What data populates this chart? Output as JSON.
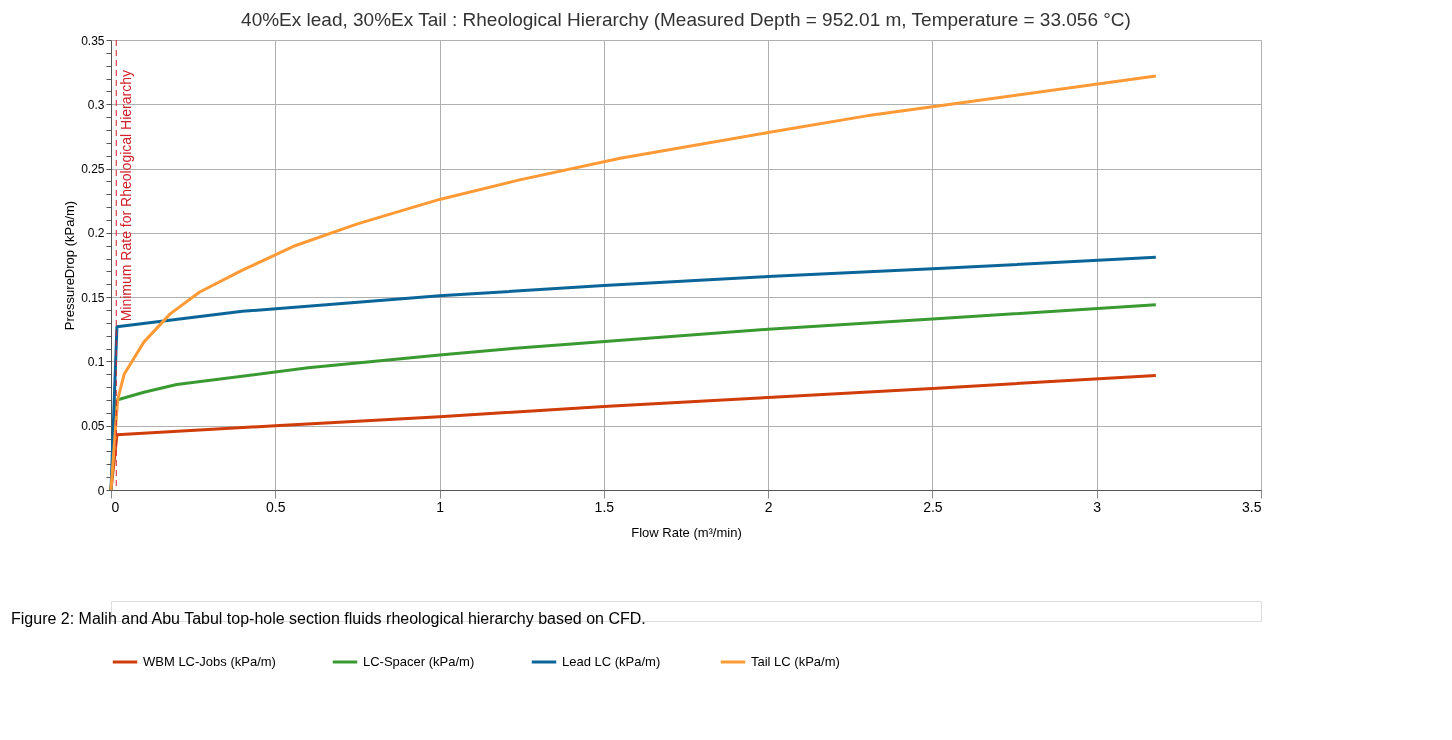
{
  "chart_data": {
    "type": "line",
    "title": "40%Ex lead, 30%Ex Tail : Rheological Hierarchy (Measured Depth = 952.01 m, Temperature = 33.056 °C)",
    "xlabel": "Flow Rate (m³/min)",
    "ylabel": "PressureDrop (kPa/m)",
    "xlim": [
      0,
      3.5
    ],
    "xticks": [
      0,
      0.5,
      1,
      1.5,
      2,
      2.5,
      3,
      3.5
    ],
    "ylim": [
      0,
      0.35
    ],
    "yticks": [
      0,
      {
        "value": 0.01,
        "label": null
      },
      {
        "value": 0.02,
        "label": null
      },
      {
        "value": 0.03,
        "label": null
      },
      {
        "value": 0.04,
        "label": null
      },
      0.05,
      {
        "value": 0.06,
        "label": null
      },
      {
        "value": 0.07,
        "label": null
      },
      {
        "value": 0.08,
        "label": null
      },
      {
        "value": 0.09,
        "label": null
      },
      0.1,
      {
        "value": 0.11,
        "label": null
      },
      {
        "value": 0.12,
        "label": null
      },
      {
        "value": 0.13,
        "label": null
      },
      {
        "value": 0.14,
        "label": null
      },
      0.15,
      {
        "value": 0.16,
        "label": null
      },
      {
        "value": 0.17,
        "label": null
      },
      {
        "value": 0.18,
        "label": null
      },
      {
        "value": 0.19,
        "label": null
      },
      0.2,
      {
        "value": 0.21,
        "label": null
      },
      {
        "value": 0.22,
        "label": null
      },
      {
        "value": 0.23,
        "label": null
      },
      {
        "value": 0.24,
        "label": null
      },
      0.25,
      {
        "value": 0.26,
        "label": null
      },
      {
        "value": 0.27,
        "label": null
      },
      {
        "value": 0.28,
        "label": null
      },
      {
        "value": 0.29,
        "label": null
      },
      0.3,
      {
        "value": 0.31,
        "label": null
      },
      {
        "value": 0.32,
        "label": null
      },
      {
        "value": 0.33,
        "label": null
      },
      {
        "value": 0.34,
        "label": null
      },
      0.35
    ],
    "grid": true,
    "legend": "bottom",
    "marker": "none",
    "line_style": "solid",
    "series": [
      {
        "name": "WBM LC-Jobs (kPa/m)",
        "color": "#d03c0a",
        "x": [
          0,
          0.018,
          0.5,
          1.0,
          1.5,
          2.0,
          2.5,
          3.18
        ],
        "values": [
          0,
          0.043,
          0.05,
          0.057,
          0.065,
          0.072,
          0.079,
          0.089
        ]
      },
      {
        "name": "LC-Spacer (kPa/m)",
        "color": "#3a9a32",
        "x": [
          0,
          0.018,
          0.1,
          0.2,
          0.6,
          1.0,
          1.22,
          2.0,
          2.5,
          3.18
        ],
        "values": [
          0,
          0.07,
          0.076,
          0.082,
          0.095,
          0.105,
          0.11,
          0.125,
          0.133,
          0.144
        ]
      },
      {
        "name": "Lead LC  (kPa/m)",
        "color": "#0b6599",
        "x": [
          0,
          0.018,
          0.4,
          1.0,
          1.5,
          2.0,
          2.5,
          3.18
        ],
        "values": [
          0,
          0.127,
          0.139,
          0.151,
          0.159,
          0.166,
          0.172,
          0.181
        ]
      },
      {
        "name": "Tail LC (kPa/m)",
        "color": "#fd9a35",
        "x": [
          0,
          0.02,
          0.04,
          0.1,
          0.18,
          0.27,
          0.4,
          0.56,
          0.75,
          1.0,
          1.24,
          1.55,
          2.0,
          2.3,
          2.5,
          3.18
        ],
        "values": [
          0,
          0.07,
          0.09,
          0.115,
          0.137,
          0.154,
          0.171,
          0.19,
          0.207,
          0.226,
          0.241,
          0.258,
          0.278,
          0.291,
          0.298,
          0.322
        ]
      }
    ],
    "ref_lines": [
      {
        "axis": "x",
        "value": 0.016,
        "label": "Minimum Rate for Rheological Hierarchy",
        "color": "#d0202a",
        "line_style": "dashed"
      }
    ],
    "annotations": [
      "Figure 2: Malih and Abu Tabul top-hole section fluids rheological hierarchy based on CFD."
    ]
  }
}
